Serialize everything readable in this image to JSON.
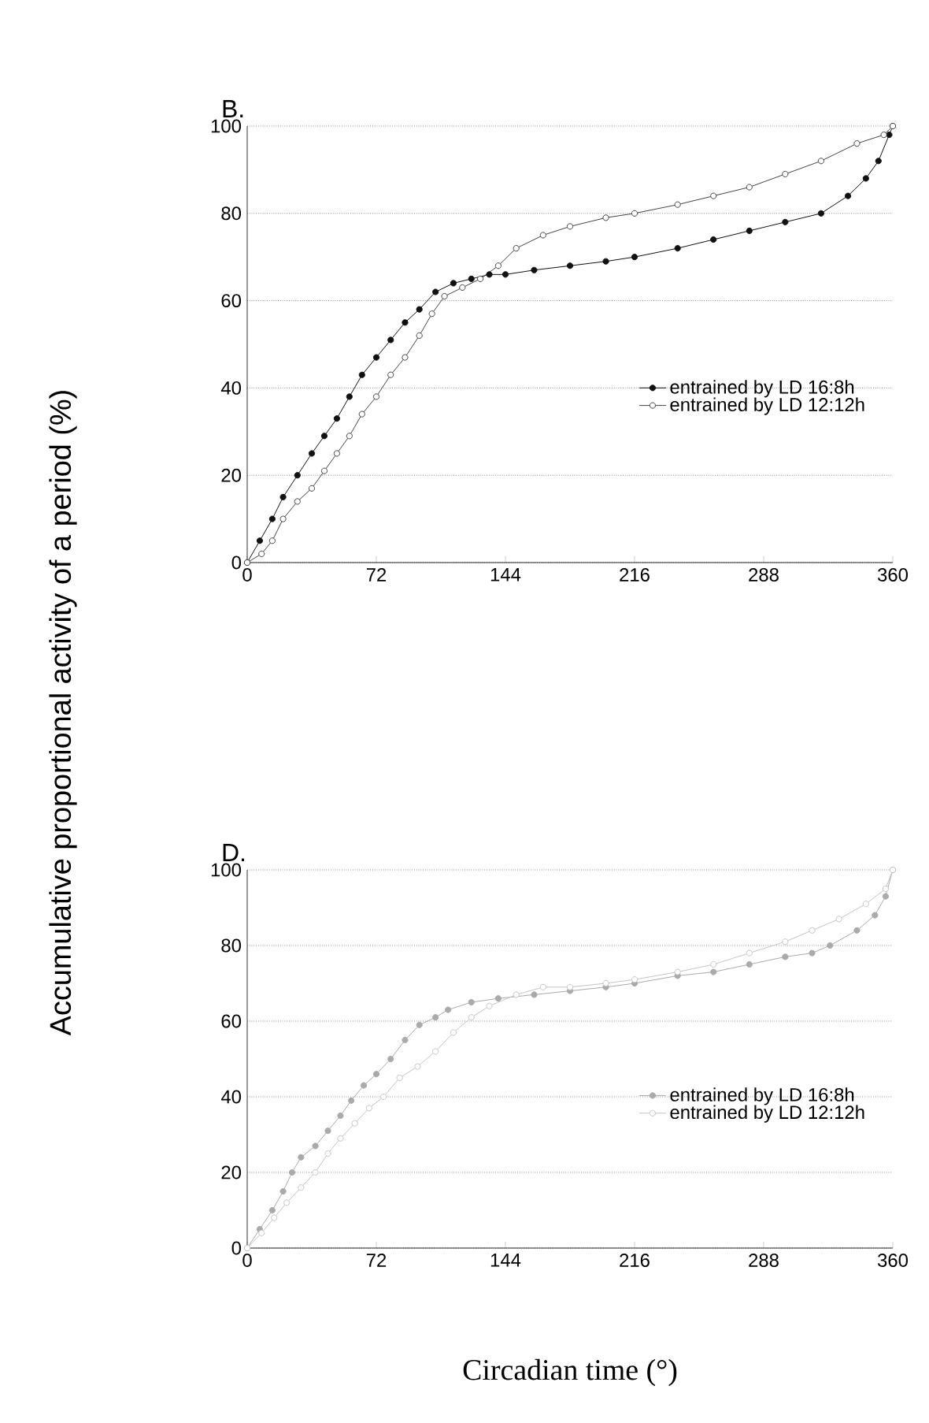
{
  "chart_data": [
    {
      "type": "line",
      "title": "B.",
      "ylabel": "Accumulative proportional activity of a period (%)",
      "xlim": [
        0,
        360
      ],
      "ylim": [
        0,
        100
      ],
      "xticks": [
        0,
        72,
        144,
        216,
        288,
        360
      ],
      "yticks": [
        0,
        20,
        40,
        60,
        80,
        100
      ],
      "grid": "y",
      "legend": "right",
      "marker": "circle",
      "series": [
        {
          "name": "entrained by LD 16:8h",
          "color": "#111111",
          "x": [
            0,
            7,
            14,
            20,
            28,
            36,
            43,
            50,
            57,
            64,
            72,
            80,
            88,
            96,
            105,
            115,
            125,
            135,
            144,
            160,
            180,
            200,
            216,
            240,
            260,
            280,
            300,
            320,
            335,
            345,
            352,
            358,
            360
          ],
          "values": [
            0,
            5,
            10,
            15,
            20,
            25,
            29,
            33,
            38,
            43,
            47,
            51,
            55,
            58,
            62,
            64,
            65,
            66,
            66,
            67,
            68,
            69,
            70,
            72,
            74,
            76,
            78,
            80,
            84,
            88,
            92,
            98,
            100
          ]
        },
        {
          "name": "entrained by LD 12:12h",
          "color": "#444444",
          "x": [
            0,
            8,
            14,
            20,
            28,
            36,
            43,
            50,
            57,
            64,
            72,
            80,
            88,
            96,
            103,
            110,
            120,
            130,
            140,
            150,
            165,
            180,
            200,
            216,
            240,
            260,
            280,
            300,
            320,
            340,
            355,
            360
          ],
          "values": [
            0,
            2,
            5,
            10,
            14,
            17,
            21,
            25,
            29,
            34,
            38,
            43,
            47,
            52,
            57,
            61,
            63,
            65,
            68,
            72,
            75,
            77,
            79,
            80,
            82,
            84,
            86,
            89,
            92,
            96,
            98,
            100
          ]
        }
      ]
    },
    {
      "type": "line",
      "title": "D.",
      "xlabel": "Circadian time (°)",
      "xlim": [
        0,
        360
      ],
      "ylim": [
        0,
        100
      ],
      "xticks": [
        0,
        72,
        144,
        216,
        288,
        360
      ],
      "yticks": [
        0,
        20,
        40,
        60,
        80,
        100
      ],
      "grid": "y",
      "legend": "right",
      "marker": "circle",
      "series": [
        {
          "name": "entrained by LD 16:8h",
          "color": "#aaaaaa",
          "x": [
            0,
            7,
            14,
            20,
            25,
            30,
            38,
            45,
            52,
            58,
            65,
            72,
            80,
            88,
            96,
            105,
            112,
            125,
            140,
            160,
            180,
            200,
            216,
            240,
            260,
            280,
            300,
            315,
            325,
            340,
            350,
            356,
            360
          ],
          "values": [
            0,
            5,
            10,
            15,
            20,
            24,
            27,
            31,
            35,
            39,
            43,
            46,
            50,
            55,
            59,
            61,
            63,
            65,
            66,
            67,
            68,
            69,
            70,
            72,
            73,
            75,
            77,
            78,
            80,
            84,
            88,
            93,
            100
          ]
        },
        {
          "name": "entrained by LD 12:12h",
          "color": "#c4c4c4",
          "x": [
            0,
            8,
            15,
            22,
            30,
            38,
            45,
            52,
            60,
            68,
            76,
            85,
            95,
            105,
            115,
            125,
            135,
            150,
            165,
            180,
            200,
            216,
            240,
            260,
            280,
            300,
            315,
            330,
            345,
            356,
            360
          ],
          "values": [
            0,
            4,
            8,
            12,
            16,
            20,
            25,
            29,
            33,
            37,
            40,
            45,
            48,
            52,
            57,
            61,
            64,
            67,
            69,
            69,
            70,
            71,
            73,
            75,
            78,
            81,
            84,
            87,
            91,
            95,
            100
          ]
        }
      ]
    }
  ]
}
